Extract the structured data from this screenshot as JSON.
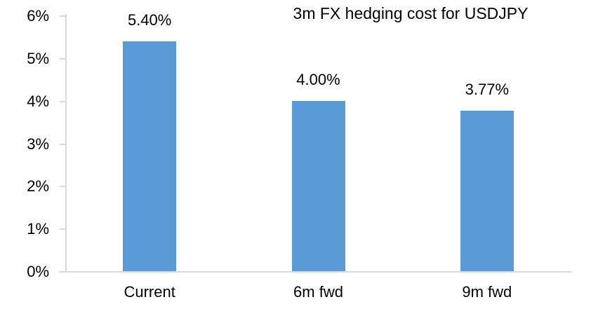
{
  "chart_data": {
    "type": "bar",
    "title": "3m FX hedging cost for USDJPY",
    "categories": [
      "Current",
      "6m fwd",
      "9m fwd"
    ],
    "values": [
      5.4,
      4.0,
      3.77
    ],
    "data_labels": [
      "5.40%",
      "4.00%",
      "3.77%"
    ],
    "xlabel": "",
    "ylabel": "",
    "ylim": [
      0,
      6
    ],
    "ytick_interval": 1,
    "ytick_labels": [
      "0%",
      "1%",
      "2%",
      "3%",
      "4%",
      "5%",
      "6%"
    ],
    "legend_position": "none",
    "grid": "off",
    "colors": {
      "bar": "#5B9BD5",
      "axis": "#D9D9D9",
      "text": "#000000",
      "background": "#FFFFFF"
    }
  }
}
